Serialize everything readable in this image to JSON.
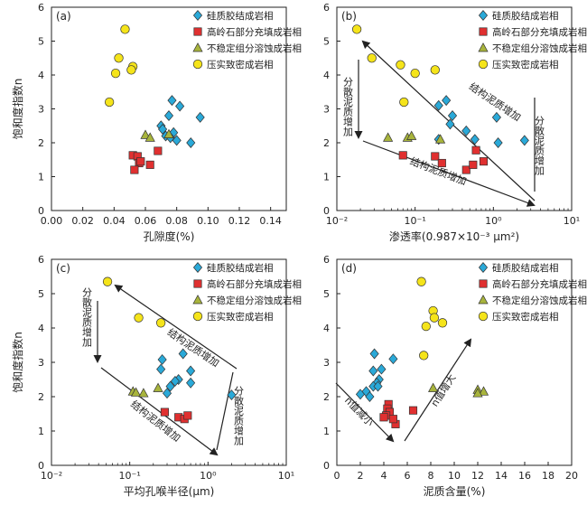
{
  "legend_labels": [
    "硅质胶结成岩相",
    "高岭石部分充填成岩相",
    "不稳定组分溶蚀成岩相",
    "压实致密成岩相"
  ],
  "colors": {
    "siliceous": "#2aa9d8",
    "kaolinite": "#e03030",
    "dissolution": "#a8b43c",
    "compaction": "#f5e41a"
  },
  "chart_data": [
    {
      "type": "scatter",
      "panel_label": "(a)",
      "xlabel": "孔隙度(%)",
      "ylabel": "饱和度指数n",
      "xscale": "linear",
      "xlim": [
        0.0,
        0.15
      ],
      "ylim": [
        0,
        6
      ],
      "xticks": [
        "0.00",
        "0.02",
        "0.04",
        "0.06",
        "0.08",
        "0.10",
        "0.12",
        "0.14"
      ],
      "xtick_values": [
        0.0,
        0.02,
        0.04,
        0.06,
        0.08,
        0.1,
        0.12,
        0.14
      ],
      "yticks": [
        "0",
        "1",
        "2",
        "3",
        "4",
        "5",
        "6"
      ],
      "legend_position": "top-right",
      "series": [
        {
          "name": "硅质胶结成岩相",
          "marker": "diamond",
          "x": [
            0.077,
            0.082,
            0.07,
            0.075,
            0.073,
            0.078,
            0.095,
            0.071,
            0.076,
            0.08,
            0.089
          ],
          "y": [
            3.25,
            3.08,
            2.5,
            2.8,
            2.2,
            2.3,
            2.75,
            2.4,
            2.15,
            2.07,
            2.0
          ]
        },
        {
          "name": "高岭石部分充填成岩相",
          "marker": "square",
          "x": [
            0.052,
            0.055,
            0.056,
            0.053,
            0.063,
            0.068,
            0.057
          ],
          "y": [
            1.63,
            1.6,
            1.4,
            1.2,
            1.35,
            1.76,
            1.45
          ]
        },
        {
          "name": "不稳定组分溶蚀成岩相",
          "marker": "triangle",
          "x": [
            0.06,
            0.063,
            0.075
          ],
          "y": [
            2.23,
            2.15,
            2.25
          ]
        },
        {
          "name": "压实致密成岩相",
          "marker": "circle",
          "x": [
            0.047,
            0.043,
            0.052,
            0.051,
            0.041,
            0.037
          ],
          "y": [
            5.35,
            4.5,
            4.25,
            4.15,
            4.05,
            3.2
          ]
        }
      ]
    },
    {
      "type": "scatter",
      "panel_label": "(b)",
      "xlabel": "渗透率(0.987×10⁻³ μm²)",
      "ylabel": "",
      "xscale": "log",
      "xlim": [
        0.01,
        10
      ],
      "ylim": [
        0,
        6
      ],
      "xticks": [
        "10⁻²",
        "10⁻¹",
        "10⁰",
        "10¹"
      ],
      "xtick_values": [
        0.01,
        0.1,
        1,
        10
      ],
      "yticks": [
        "0",
        "1",
        "2",
        "3",
        "4",
        "5",
        "6"
      ],
      "legend_position": "top-right",
      "series": [
        {
          "name": "硅质胶结成岩相",
          "marker": "diamond",
          "x": [
            0.25,
            0.2,
            0.3,
            0.28,
            1.1,
            2.5,
            0.45,
            0.58,
            1.15,
            0.2
          ],
          "y": [
            3.25,
            3.1,
            2.8,
            2.55,
            2.75,
            2.07,
            2.35,
            2.1,
            2.0,
            2.1
          ]
        },
        {
          "name": "高岭石部分充填成岩相",
          "marker": "square",
          "x": [
            0.07,
            0.18,
            0.22,
            0.45,
            0.55,
            0.6,
            0.75
          ],
          "y": [
            1.63,
            1.6,
            1.4,
            1.2,
            1.35,
            1.78,
            1.45
          ]
        },
        {
          "name": "不稳定组分溶蚀成岩相",
          "marker": "triangle",
          "x": [
            0.045,
            0.08,
            0.09,
            0.21
          ],
          "y": [
            2.15,
            2.15,
            2.2,
            2.1
          ]
        },
        {
          "name": "压实致密成岩相",
          "marker": "circle",
          "x": [
            0.018,
            0.028,
            0.065,
            0.1,
            0.18,
            0.072
          ],
          "y": [
            5.35,
            4.5,
            4.3,
            4.05,
            4.15,
            3.2
          ]
        }
      ],
      "annotations": [
        "结构泥质增加",
        "结构泥质增加",
        "分散泥质增加",
        "分散泥质增加"
      ]
    },
    {
      "type": "scatter",
      "panel_label": "(c)",
      "xlabel": "平均孔喉半径(μm)",
      "ylabel": "饱和度指数n",
      "xscale": "log",
      "xlim": [
        0.01,
        10
      ],
      "ylim": [
        0,
        6
      ],
      "xticks": [
        "10⁻²",
        "10⁻¹",
        "10⁰",
        "10¹"
      ],
      "xtick_values": [
        0.01,
        0.1,
        1,
        10
      ],
      "yticks": [
        "0",
        "1",
        "2",
        "3",
        "4",
        "5",
        "6"
      ],
      "legend_position": "top-right",
      "series": [
        {
          "name": "硅质胶结成岩相",
          "marker": "diamond",
          "x": [
            0.48,
            0.26,
            0.25,
            0.6,
            0.42,
            0.38,
            0.6,
            0.33,
            2.0,
            0.3
          ],
          "y": [
            3.25,
            3.08,
            2.8,
            2.75,
            2.5,
            2.45,
            2.4,
            2.3,
            2.05,
            2.1
          ]
        },
        {
          "name": "高岭石部分充填成岩相",
          "marker": "square",
          "x": [
            0.28,
            0.42,
            0.5,
            0.55
          ],
          "y": [
            1.55,
            1.4,
            1.35,
            1.45
          ]
        },
        {
          "name": "不稳定组分溶蚀成岩相",
          "marker": "triangle",
          "x": [
            0.11,
            0.12,
            0.15,
            0.23
          ],
          "y": [
            2.15,
            2.12,
            2.1,
            2.25
          ]
        },
        {
          "name": "压实致密成岩相",
          "marker": "circle",
          "x": [
            0.052,
            0.13,
            0.25
          ],
          "y": [
            5.35,
            4.3,
            4.15
          ]
        }
      ],
      "annotations": [
        "结构泥质增加",
        "结构泥质增加",
        "分散泥质增加",
        "分散泥质增加"
      ]
    },
    {
      "type": "scatter",
      "panel_label": "(d)",
      "xlabel": "泥质含量(%)",
      "ylabel": "",
      "xscale": "linear",
      "xlim": [
        0,
        20
      ],
      "ylim": [
        0,
        6
      ],
      "xticks": [
        "0",
        "2",
        "4",
        "6",
        "8",
        "10",
        "12",
        "14",
        "16",
        "18",
        "20"
      ],
      "xtick_values": [
        0,
        2,
        4,
        6,
        8,
        10,
        12,
        14,
        16,
        18,
        20
      ],
      "yticks": [
        "0",
        "1",
        "2",
        "3",
        "4",
        "5",
        "6"
      ],
      "legend_position": "top-right",
      "series": [
        {
          "name": "硅质胶结成岩相",
          "marker": "diamond",
          "x": [
            3.2,
            4.8,
            3.8,
            3.1,
            3.6,
            3.4,
            3.1,
            2.5,
            2.0,
            2.8,
            3.5
          ],
          "y": [
            3.25,
            3.1,
            2.8,
            2.75,
            2.5,
            2.4,
            2.3,
            2.15,
            2.07,
            2.0,
            2.3
          ]
        },
        {
          "name": "高岭石部分充填成岩相",
          "marker": "square",
          "x": [
            4.4,
            4.3,
            4.5,
            4.2,
            4.0,
            5.0,
            6.5,
            4.8
          ],
          "y": [
            1.78,
            1.65,
            1.55,
            1.45,
            1.4,
            1.2,
            1.6,
            1.35
          ]
        },
        {
          "name": "不稳定组分溶蚀成岩相",
          "marker": "triangle",
          "x": [
            8.2,
            12.0,
            12.5,
            12.0
          ],
          "y": [
            2.25,
            2.2,
            2.15,
            2.1
          ]
        },
        {
          "name": "压实致密成岩相",
          "marker": "circle",
          "x": [
            7.2,
            8.2,
            8.3,
            9.0,
            7.6,
            7.4
          ],
          "y": [
            5.35,
            4.5,
            4.3,
            4.15,
            4.05,
            3.2
          ]
        }
      ],
      "annotations": [
        "n值减小",
        "n值增大"
      ]
    }
  ]
}
